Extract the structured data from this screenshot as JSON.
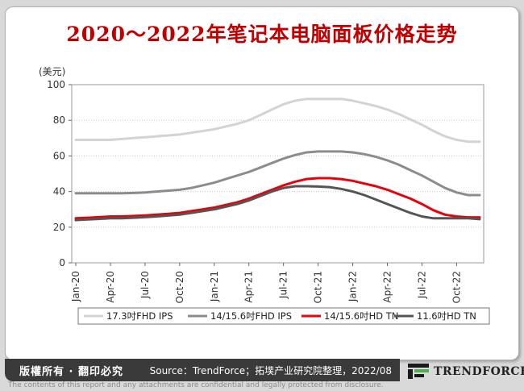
{
  "title": "2020～2022年笔记本电脑面板价格走势",
  "chart_data": {
    "type": "line",
    "ylabel": "(美元)",
    "ylim": [
      0,
      100
    ],
    "yticks": [
      0,
      20,
      40,
      60,
      80,
      100
    ],
    "x": [
      "Jan-20",
      "Feb-20",
      "Mar-20",
      "Apr-20",
      "May-20",
      "Jun-20",
      "Jul-20",
      "Aug-20",
      "Sep-20",
      "Oct-20",
      "Nov-20",
      "Dec-20",
      "Jan-21",
      "Feb-21",
      "Mar-21",
      "Apr-21",
      "May-21",
      "Jun-21",
      "Jul-21",
      "Aug-21",
      "Sep-21",
      "Oct-21",
      "Nov-21",
      "Dec-21",
      "Jan-22",
      "Feb-22",
      "Mar-22",
      "Apr-22",
      "May-22",
      "Jun-22",
      "Jul-22",
      "Aug-22",
      "Sep-22",
      "Oct-22",
      "Nov-22",
      "Dec-22"
    ],
    "xtick_labels": [
      "Jan-20",
      "Apr-20",
      "Jul-20",
      "Oct-20",
      "Jan-21",
      "Apr-21",
      "Jul-21",
      "Oct-21",
      "Jan-22",
      "Apr-22",
      "Jul-22",
      "Oct-22"
    ],
    "xtick_indices": [
      0,
      3,
      6,
      9,
      12,
      15,
      18,
      21,
      24,
      27,
      30,
      33
    ],
    "series": [
      {
        "name": "17.3吋FHD IPS",
        "color": "#d3d3d3",
        "values": [
          69,
          69,
          69,
          69,
          69.5,
          70,
          70.5,
          71,
          71.5,
          72,
          73,
          74,
          75,
          76.5,
          78,
          80,
          83,
          86,
          89,
          91,
          92,
          92,
          92,
          92,
          91,
          89.5,
          88,
          86,
          83.5,
          80.5,
          77.5,
          74,
          71,
          69,
          68,
          68
        ]
      },
      {
        "name": "14/15.6吋FHD IPS",
        "color": "#8c8c8c",
        "values": [
          39,
          39,
          39,
          39,
          39,
          39.2,
          39.5,
          40,
          40.5,
          41,
          42,
          43.5,
          45,
          47,
          49,
          51,
          53.5,
          56,
          58.5,
          60.5,
          62,
          62.5,
          62.5,
          62.5,
          62,
          61,
          59.5,
          57.5,
          55,
          52,
          49,
          45.5,
          42,
          39.5,
          38,
          38
        ]
      },
      {
        "name": "14/15.6吋HD TN",
        "color": "#e8000b",
        "values": [
          25,
          25.3,
          25.6,
          26,
          26,
          26.3,
          26.6,
          27,
          27.5,
          28,
          29,
          30,
          31,
          32.5,
          34,
          36,
          38.5,
          41,
          43.5,
          45.5,
          47,
          47.5,
          47.5,
          47,
          46,
          44.5,
          43,
          41,
          38.5,
          36,
          33,
          29.5,
          27,
          26,
          25.5,
          25.5
        ]
      },
      {
        "name": "11.6吋HD TN",
        "color": "#555555",
        "values": [
          24,
          24.3,
          24.6,
          25,
          25,
          25.3,
          25.6,
          26,
          26.5,
          27,
          28,
          29,
          30,
          31.5,
          33,
          35,
          37.5,
          40,
          42,
          43,
          43,
          42.8,
          42.5,
          41.5,
          40,
          38,
          35.5,
          33,
          30.5,
          28,
          26,
          25,
          25,
          25,
          25,
          24.5
        ]
      }
    ],
    "grid": true,
    "legend_position": "bottom"
  },
  "footer": {
    "rights": "版權所有 · 翻印必究",
    "source": "Source：TrendForce；拓墣产业研究院整理，2022/08",
    "brand": "TRENDFORCE",
    "disclaimer": "The contents of this report and any attachments are confidential and legally protected from disclosure."
  }
}
